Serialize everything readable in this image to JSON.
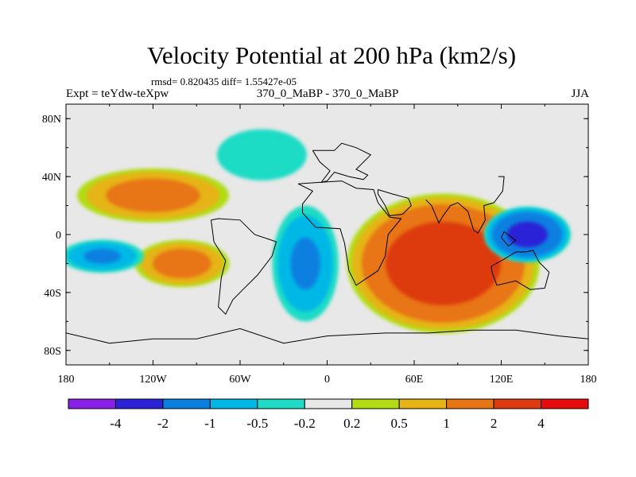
{
  "chart_data": {
    "type": "heatmap",
    "title": "Velocity Potential at 200 hPa (km2/s)",
    "stats_text": "rmsd= 0.820435  diff= 1.55427e-05",
    "left_label": "Expt = teYdw-teXpw",
    "center_label": "370_0_MaBP - 370_0_MaBP",
    "right_label": "JJA",
    "x_ticks": [
      {
        "value": -180,
        "label": "180"
      },
      {
        "value": -120,
        "label": "120W"
      },
      {
        "value": -60,
        "label": "60W"
      },
      {
        "value": 0,
        "label": "0"
      },
      {
        "value": 60,
        "label": "60E"
      },
      {
        "value": 120,
        "label": "120E"
      },
      {
        "value": 180,
        "label": "180"
      }
    ],
    "y_ticks": [
      {
        "value": 80,
        "label": "80N"
      },
      {
        "value": 40,
        "label": "40N"
      },
      {
        "value": 0,
        "label": "0"
      },
      {
        "value": -40,
        "label": "40S"
      },
      {
        "value": -80,
        "label": "80S"
      }
    ],
    "xlim": [
      -180,
      180
    ],
    "ylim": [
      -90,
      90
    ],
    "colorbar": {
      "levels": [
        "-4",
        "-2",
        "-1",
        "-0.5",
        "-0.2",
        "0.2",
        "0.5",
        "1",
        "2",
        "4"
      ],
      "colors": [
        "#8a1fe6",
        "#2b22d6",
        "#0a7fe0",
        "#00b8e6",
        "#1fdcc6",
        "#e8e8e8",
        "#b2dc14",
        "#e6b414",
        "#e87514",
        "#dd3a10",
        "#e60c0c"
      ]
    },
    "field_features": [
      {
        "name": "north-pacific-positive",
        "lon": -120,
        "lat": 27,
        "rx": 45,
        "ry": 16,
        "peak": 1.5
      },
      {
        "name": "south-pacific-positive",
        "lon": -100,
        "lat": -20,
        "rx": 28,
        "ry": 14,
        "peak": 1.5
      },
      {
        "name": "east-pacific-negative",
        "lon": -155,
        "lat": -15,
        "rx": 25,
        "ry": 10,
        "peak": -1.2
      },
      {
        "name": "atlantic-africa-negative",
        "lon": -15,
        "lat": -20,
        "rx": 20,
        "ry": 35,
        "peak": -1.2
      },
      {
        "name": "indian-ocean-positive",
        "lon": 80,
        "lat": -20,
        "rx": 55,
        "ry": 40,
        "peak": 3.0
      },
      {
        "name": "west-pacific-negative",
        "lon": 138,
        "lat": 0,
        "rx": 25,
        "ry": 16,
        "peak": -2.5
      },
      {
        "name": "north-atlantic-negative",
        "lon": -45,
        "lat": 55,
        "rx": 35,
        "ry": 20,
        "peak": -0.4
      }
    ]
  }
}
